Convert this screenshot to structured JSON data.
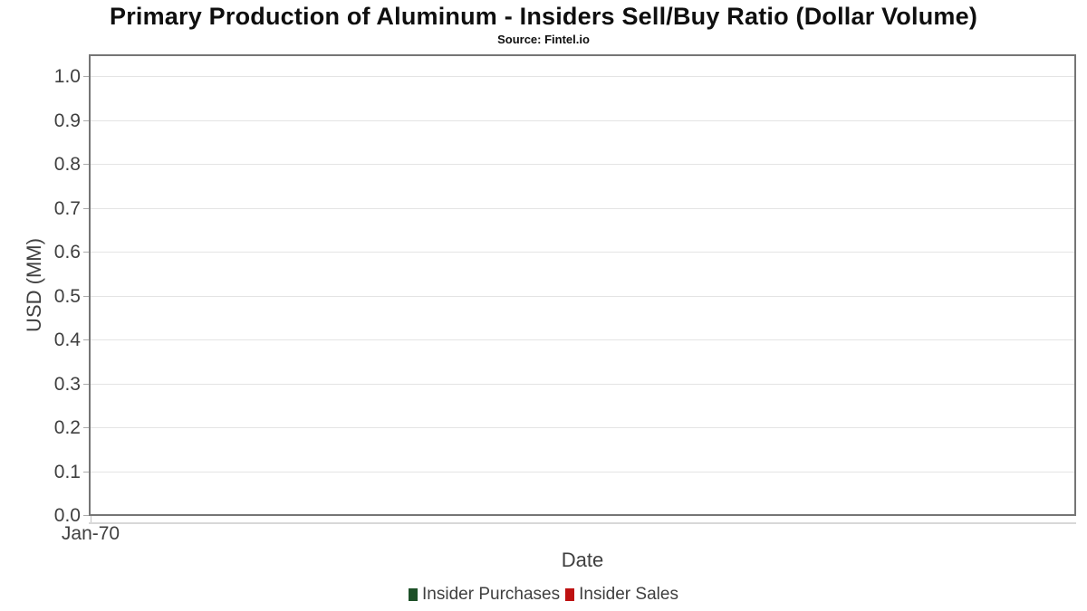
{
  "page": {
    "title": "Primary Production of Aluminum - Insiders Sell/Buy Ratio (Dollar Volume)",
    "subtitle": "Source: Fintel.io"
  },
  "chart_data": {
    "type": "line",
    "title": "Primary Production of Aluminum - Insiders Sell/Buy Ratio (Dollar Volume)",
    "subtitle": "Source: Fintel.io",
    "xlabel": "Date",
    "ylabel": "USD (MM)",
    "x_tick_labels": [
      "Jan-70"
    ],
    "x_tick_positions": [
      0
    ],
    "y_tick_labels": [
      "0.0",
      "0.1",
      "0.2",
      "0.3",
      "0.4",
      "0.5",
      "0.6",
      "0.7",
      "0.8",
      "0.9",
      "1.0"
    ],
    "ylim": [
      0.0,
      1.05
    ],
    "grid": "horizontal",
    "legend_position": "bottom-center",
    "series": [
      {
        "name": "Insider Purchases",
        "color": "#1d5028",
        "x": [],
        "y": []
      },
      {
        "name": "Insider Sales",
        "color": "#be1111",
        "x": [],
        "y": []
      }
    ],
    "note": "Plot area contains no plotted data points; only gridlines are visible."
  },
  "colors": {
    "title_text": "#0f0f0f",
    "axis_text": "#3f3f3f",
    "plot_border": "#757575",
    "gridline": "#e4e4e4",
    "tick_mark": "#ababab",
    "x_axis_line": "#d8d8d8",
    "purchases_green": "#1d5028",
    "sales_red": "#be1111",
    "background": "#ffffff"
  }
}
